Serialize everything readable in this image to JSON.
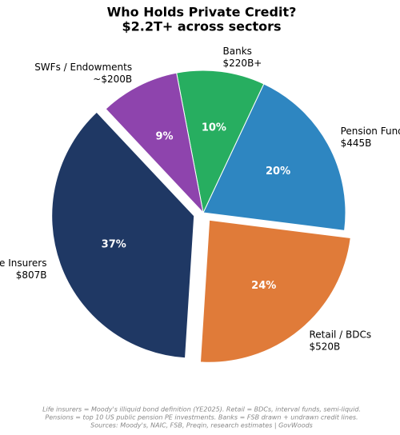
{
  "chart_data": {
    "type": "pie",
    "title": [
      "Who Holds Private Credit?",
      "$2.2T+ across sectors"
    ],
    "categories": [
      "Life Insurers",
      "Retail / BDCs",
      "Pension Funds",
      "Banks",
      "SWFs / Endowments"
    ],
    "amount_labels": [
      "$807B",
      "$520B",
      "$445B",
      "$220B+",
      "~$200B"
    ],
    "values": [
      37,
      24,
      20,
      10,
      9
    ],
    "value_labels": [
      "37%",
      "24%",
      "20%",
      "10%",
      "9%"
    ],
    "colors": [
      "#1f3864",
      "#e07b39",
      "#2e86c1",
      "#27ae60",
      "#8e44ad"
    ],
    "footnote": [
      "Life insurers = Moody's illiquid bond definition (YE2025). Retail = BDCs, interval funds, semi-liquid.",
      "Pensions = top 10 US public pension PE investments. Banks = FSB drawn + undrawn credit lines.",
      "Sources: Moody's, NAIC, FSB, Preqin, research estimates | GovWoods"
    ]
  }
}
